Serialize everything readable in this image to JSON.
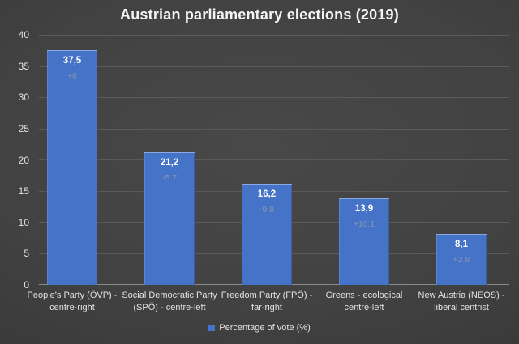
{
  "chart_data": {
    "type": "bar",
    "title": "Austrian parliamentary elections (2019)",
    "categories": [
      "People's Party (ÖVP) -\ncentre-right",
      "Social Democratic Party\n(SPÖ) - centre-left",
      "Freedom Party (FPÖ) -\nfar-right",
      "Greens - ecological\ncentre-left",
      "New Austria (NEOS) -\nliberal centrist"
    ],
    "values": [
      37.5,
      21.2,
      16.2,
      13.9,
      8.1
    ],
    "value_labels": [
      "37,5",
      "21,2",
      "16,2",
      "13,9",
      "8,1"
    ],
    "change_labels": [
      "+6",
      "-5.7",
      "-9.8",
      "+10.1",
      "+2.8"
    ],
    "yticks_top_to_bottom": [
      "40",
      "35",
      "30",
      "25",
      "20",
      "15",
      "10",
      "5",
      "0"
    ],
    "ylim": [
      0,
      40
    ],
    "xlabel": "",
    "ylabel": "",
    "grid": true,
    "legend": {
      "label": "Percentage of vote (%)",
      "position": "bottom"
    },
    "colors": {
      "bar": "#4573c8",
      "background": "#3e3e3e",
      "gridline": "#5a5a5a",
      "axis_line": "#8a8a8a",
      "title_text": "#f4f4f4",
      "tick_text": "#e3e3e3",
      "value_label_text": "#ffffff",
      "change_label_text": "#8b95ab"
    }
  }
}
